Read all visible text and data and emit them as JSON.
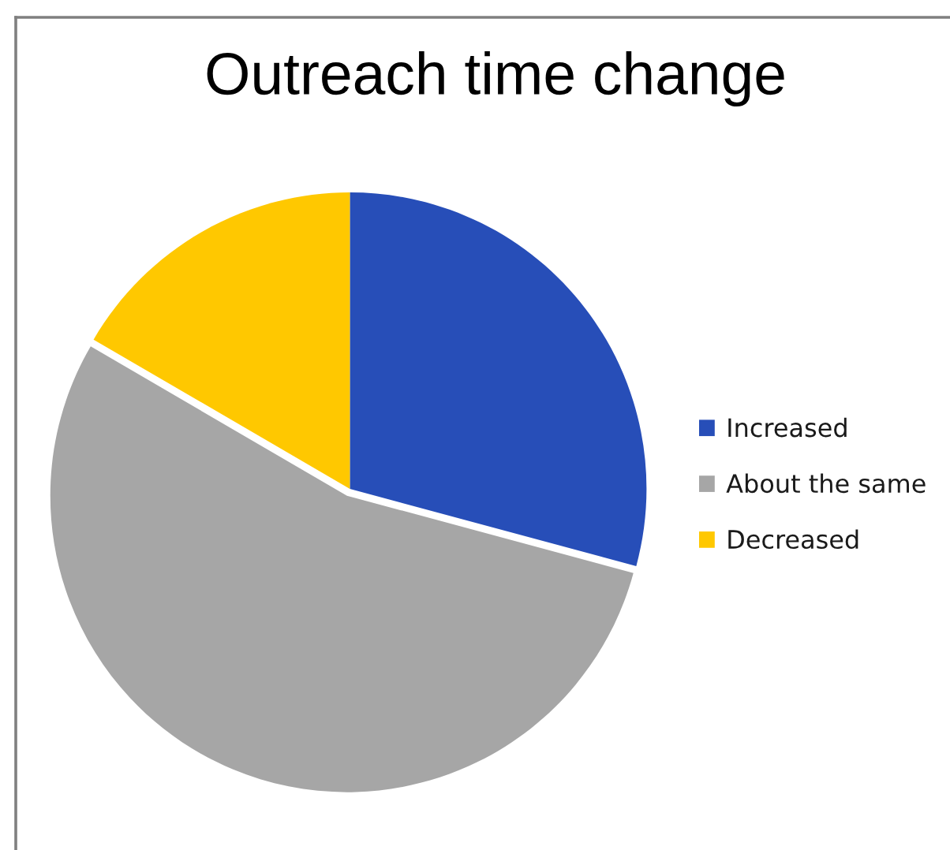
{
  "chart_data": {
    "type": "pie",
    "title": "Outreach time change",
    "categories": [
      "Increased",
      "About the same",
      "Decreased"
    ],
    "values": [
      29.2,
      54.2,
      16.6
    ],
    "colors": [
      "#274eb8",
      "#a6a6a6",
      "#ffc800"
    ],
    "legend": "right"
  }
}
